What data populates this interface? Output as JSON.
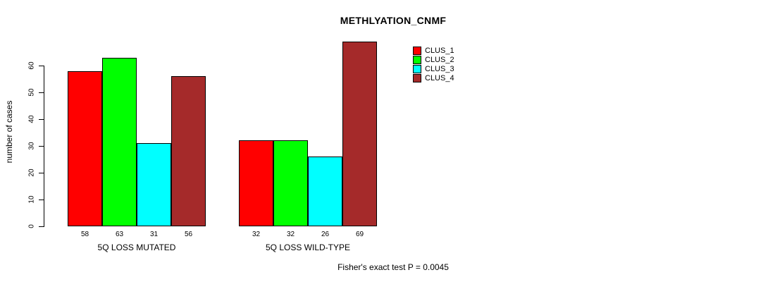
{
  "page": {
    "background": "#FFFFFF"
  },
  "chart_data": {
    "type": "bar",
    "title": "METHLYATION_CNMF",
    "ylabel": "number of cases",
    "xlabel": "",
    "categories": [
      "5Q LOSS MUTATED",
      "5Q LOSS WILD-TYPE"
    ],
    "series": [
      {
        "name": "CLUS_1",
        "color": "#FF0000",
        "values": [
          58,
          32
        ]
      },
      {
        "name": "CLUS_2",
        "color": "#00FF00",
        "values": [
          63,
          32
        ]
      },
      {
        "name": "CLUS_3",
        "color": "#00FFFF",
        "values": [
          31,
          26
        ]
      },
      {
        "name": "CLUS_4",
        "color": "#A52A2A",
        "values": [
          56,
          69
        ]
      }
    ],
    "yticks": [
      0,
      10,
      20,
      30,
      40,
      50,
      60
    ],
    "ylim": [
      0,
      60
    ],
    "grid": false,
    "legend_position": "top-right",
    "bar_value_labels_shown": true,
    "annotation": "Fisher's exact test P = 0.0045"
  }
}
